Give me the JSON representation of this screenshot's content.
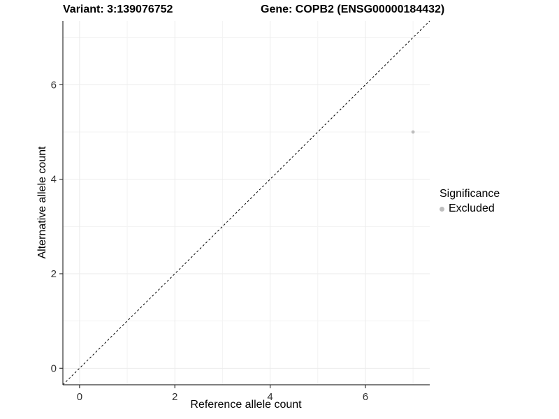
{
  "titles": {
    "variant": "Variant: 3:139076752",
    "gene": "Gene: COPB2 (ENSG00000184432)"
  },
  "chart_data": {
    "type": "scatter",
    "title_left": "Variant: 3:139076752",
    "title_right": "Gene: COPB2 (ENSG00000184432)",
    "xlabel": "Reference allele count",
    "ylabel": "Alternative allele count",
    "xlim": [
      -0.35,
      7.35
    ],
    "ylim": [
      -0.35,
      7.35
    ],
    "x_ticks": [
      0,
      2,
      4,
      6
    ],
    "y_ticks": [
      0,
      2,
      4,
      6
    ],
    "x_minor_ticks": [
      1,
      3,
      5,
      7
    ],
    "y_minor_ticks": [
      1,
      3,
      5,
      7
    ],
    "grid": true,
    "reference_line": {
      "type": "identity",
      "style": "dashed",
      "equation": "y = x"
    },
    "series": [
      {
        "name": "Excluded",
        "points": [
          {
            "x": 7,
            "y": 5
          }
        ]
      }
    ],
    "legend": {
      "title": "Significance",
      "position": "right",
      "items": [
        {
          "label": "Excluded",
          "color": "#BEBEBE"
        }
      ]
    }
  },
  "colors": {
    "point": "#BEBEBE",
    "grid_major": "#EBEBEB",
    "grid_minor": "#F3F3F3",
    "axis_line": "#333333",
    "tick_label": "#333333",
    "dashed_line": "#000000",
    "background": "#FFFFFF"
  }
}
